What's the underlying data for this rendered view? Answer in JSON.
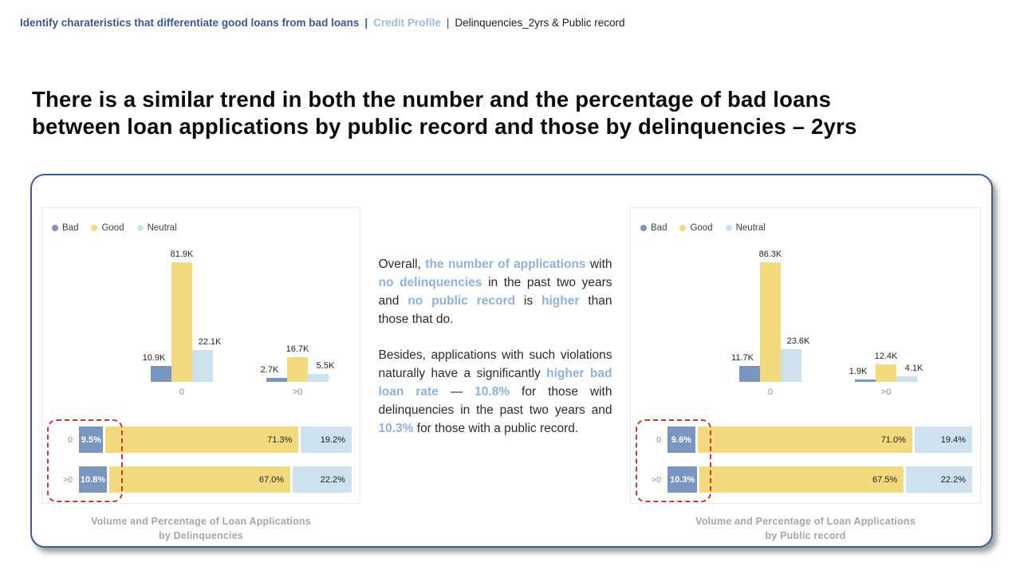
{
  "colors": {
    "bad": "#7B96BE",
    "good": "#F4DA7F",
    "neutral": "#CDE1EF",
    "navy": "#3B5C94",
    "highlight_blue": "#8FB2DC",
    "highlight_red": "#C9392F",
    "caption_gray": "#A6A6A6"
  },
  "breadcrumb": {
    "section": "Identify charateristics that differentiate good loans from bad loans",
    "sep1": "|",
    "subsection": "Credit Profile",
    "sep2": "|",
    "page": "Delinquencies_2yrs & Public record"
  },
  "headline": {
    "line1": "There is a similar trend in both the number and the percentage of bad loans",
    "line2": "between loan applications by public record and those by delinquencies – 2yrs"
  },
  "legend": [
    {
      "key": "bad",
      "label": "Bad"
    },
    {
      "key": "good",
      "label": "Good"
    },
    {
      "key": "neutral",
      "label": "Neutral"
    }
  ],
  "chart_data": [
    {
      "type": "bar",
      "title": "Volume and Percentage of Loan Applications by Delinquencies",
      "title_line1": "Volume and Percentage of Loan Applications",
      "title_line2": "by Delinquencies",
      "categories": [
        "0",
        ">0"
      ],
      "unit": "loan applications",
      "legend_position": "top-left",
      "series": [
        {
          "name": "Bad",
          "key": "bad",
          "values": [
            10900,
            2700
          ],
          "labels": [
            "10.9K",
            "2.7K"
          ]
        },
        {
          "name": "Good",
          "key": "good",
          "values": [
            81900,
            16700
          ],
          "labels": [
            "81.9K",
            "16.7K"
          ]
        },
        {
          "name": "Neutral",
          "key": "neutral",
          "values": [
            22100,
            5500
          ],
          "labels": [
            "22.1K",
            "5.5K"
          ]
        }
      ],
      "percent_rows": [
        {
          "category": "0",
          "segments": [
            {
              "key": "bad",
              "pct": 9.5,
              "label": "9.5%"
            },
            {
              "key": "good",
              "pct": 71.3,
              "label": "71.3%"
            },
            {
              "key": "neutral",
              "pct": 19.2,
              "label": "19.2%"
            }
          ]
        },
        {
          "category": ">0",
          "segments": [
            {
              "key": "bad",
              "pct": 10.8,
              "label": "10.8%"
            },
            {
              "key": "good",
              "pct": 67.0,
              "label": "67.0%"
            },
            {
              "key": "neutral",
              "pct": 22.2,
              "label": "22.2%"
            }
          ]
        }
      ]
    },
    {
      "type": "bar",
      "title": "Volume and Percentage of Loan Applications by Public record",
      "title_line1": "Volume and Percentage of Loan Applications",
      "title_line2": "by Public record",
      "categories": [
        "0",
        ">0"
      ],
      "unit": "loan applications",
      "legend_position": "top-left",
      "series": [
        {
          "name": "Bad",
          "key": "bad",
          "values": [
            11700,
            1900
          ],
          "labels": [
            "11.7K",
            "1.9K"
          ]
        },
        {
          "name": "Good",
          "key": "good",
          "values": [
            86300,
            12400
          ],
          "labels": [
            "86.3K",
            "12.4K"
          ]
        },
        {
          "name": "Neutral",
          "key": "neutral",
          "values": [
            23600,
            4100
          ],
          "labels": [
            "23.6K",
            "4.1K"
          ]
        }
      ],
      "percent_rows": [
        {
          "category": "0",
          "segments": [
            {
              "key": "bad",
              "pct": 9.6,
              "label": "9.6%"
            },
            {
              "key": "good",
              "pct": 71.0,
              "label": "71.0%"
            },
            {
              "key": "neutral",
              "pct": 19.4,
              "label": "19.4%"
            }
          ]
        },
        {
          "category": ">0",
          "segments": [
            {
              "key": "bad",
              "pct": 10.3,
              "label": "10.3%"
            },
            {
              "key": "good",
              "pct": 67.5,
              "label": "67.5%"
            },
            {
              "key": "neutral",
              "pct": 22.2,
              "label": "22.2%"
            }
          ]
        }
      ]
    }
  ],
  "insight": {
    "paragraphs": [
      [
        {
          "text": "Overall, ",
          "highlight": false
        },
        {
          "text": "the number of applications",
          "highlight": true
        },
        {
          "text": " with ",
          "highlight": false
        },
        {
          "text": "no delinquencies",
          "highlight": true
        },
        {
          "text": " in the past two years and ",
          "highlight": false
        },
        {
          "text": "no public record",
          "highlight": true
        },
        {
          "text": " is ",
          "highlight": false
        },
        {
          "text": "higher",
          "highlight": true
        },
        {
          "text": " than those that do.",
          "highlight": false
        }
      ],
      [
        {
          "text": "Besides, applications with such violations naturally have a significantly ",
          "highlight": false
        },
        {
          "text": "higher bad loan rate",
          "highlight": true
        },
        {
          "text": " — ",
          "highlight": false
        },
        {
          "text": "10.8%",
          "highlight": true
        },
        {
          "text": " for those with delinquencies in the past two years and ",
          "highlight": false
        },
        {
          "text": "10.3%",
          "highlight": true
        },
        {
          "text": " for those with a public record.",
          "highlight": false
        }
      ]
    ]
  }
}
